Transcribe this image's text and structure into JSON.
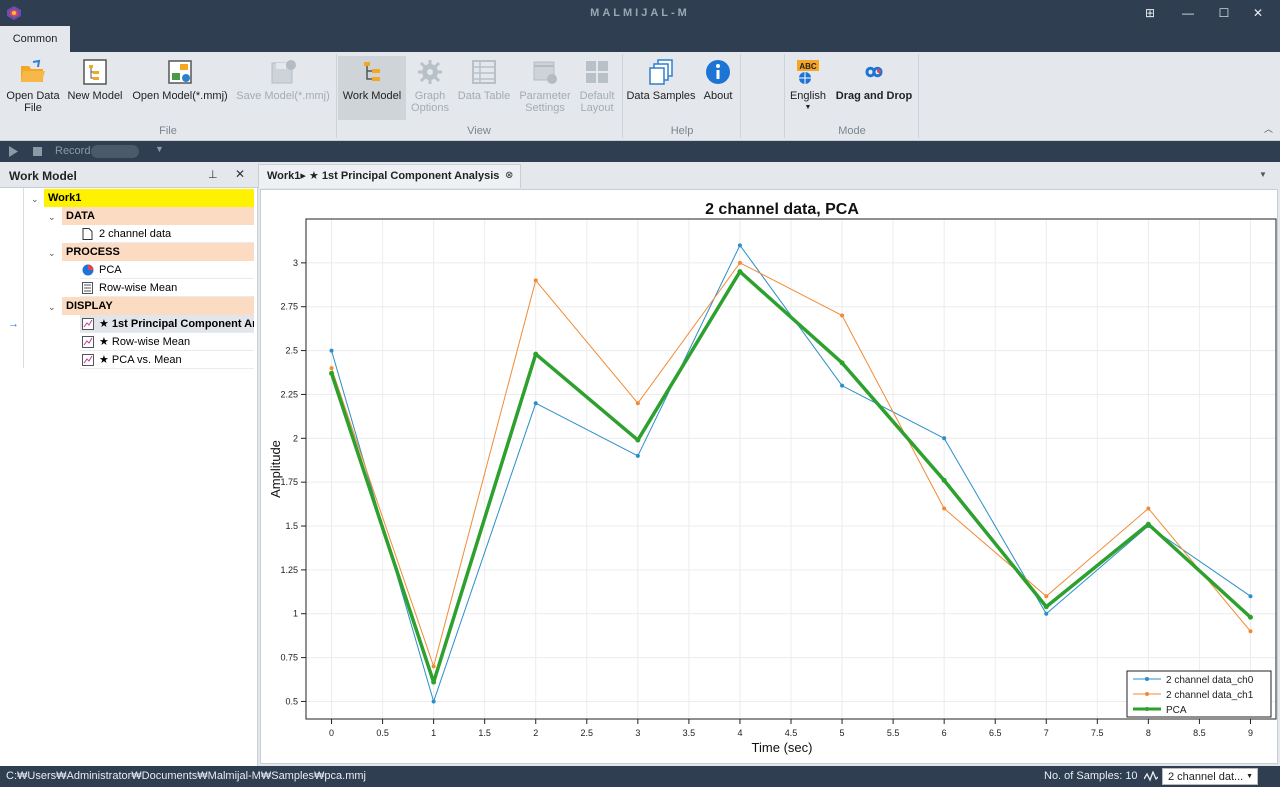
{
  "window": {
    "title": "MALMIJAL-M"
  },
  "tabs": [
    {
      "label": "Common"
    }
  ],
  "ribbon": {
    "buttons": [
      {
        "label": "Open Data",
        "label2": "File"
      },
      {
        "label": "New Model"
      },
      {
        "label": "Open Model(*.mmj)"
      },
      {
        "label": "Save Model(*.mmj)"
      },
      {
        "label": "Work Model"
      },
      {
        "label": "Graph",
        "label2": "Options"
      },
      {
        "label": "Data Table"
      },
      {
        "label": "Parameter",
        "label2": "Settings"
      },
      {
        "label": "Default",
        "label2": "Layout"
      },
      {
        "label": "Data Samples"
      },
      {
        "label": "About"
      },
      {
        "label": "English",
        "badge": "ABC"
      },
      {
        "label": "Drag and Drop"
      }
    ],
    "groups": [
      {
        "label": "File"
      },
      {
        "label": "View"
      },
      {
        "label": "Help"
      },
      {
        "label": "Mode"
      }
    ]
  },
  "record": {
    "label": "Record"
  },
  "work_model": {
    "title": "Work Model",
    "root": "Work1",
    "sections": [
      {
        "label": "DATA",
        "items": [
          {
            "label": "2 channel data"
          }
        ]
      },
      {
        "label": "PROCESS",
        "items": [
          {
            "label": "PCA"
          },
          {
            "label": "Row-wise Mean"
          }
        ]
      },
      {
        "label": "DISPLAY",
        "items": [
          {
            "label": "★ 1st Principal Component Analysis"
          },
          {
            "label": "★ Row-wise Mean"
          },
          {
            "label": "★ PCA vs. Mean"
          }
        ]
      }
    ]
  },
  "doc_tab": {
    "label": "Work1▸ ★ 1st Principal Component Analysis"
  },
  "chart_data": {
    "type": "line",
    "title": "2 channel data, PCA",
    "xlabel": "Time (sec)",
    "ylabel": "Amplitude",
    "xlim": [
      -0.25,
      9.25
    ],
    "ylim": [
      0.4,
      3.25
    ],
    "xticks": [
      "0",
      "0.5",
      "1",
      "1.5",
      "2",
      "2.5",
      "3",
      "3.5",
      "4",
      "4.5",
      "5",
      "5.5",
      "6",
      "6.5",
      "7",
      "7.5",
      "8",
      "8.5",
      "9"
    ],
    "yticks": [
      "0.5",
      "0.75",
      "1",
      "1.25",
      "1.5",
      "1.75",
      "2",
      "2.25",
      "2.5",
      "2.75",
      "3"
    ],
    "grid": true,
    "legend_position": "bottom-right",
    "x": [
      0,
      1,
      2,
      3,
      4,
      5,
      6,
      7,
      8,
      9
    ],
    "series": [
      {
        "name": "2 channel data_ch0",
        "color": "#2a8fc8",
        "values": [
          2.5,
          0.5,
          2.2,
          1.9,
          3.1,
          2.3,
          2.0,
          1.0,
          1.5,
          1.1
        ]
      },
      {
        "name": "2 channel data_ch1",
        "color": "#f28a34",
        "values": [
          2.4,
          0.7,
          2.9,
          2.2,
          3.0,
          2.7,
          1.6,
          1.1,
          1.6,
          0.9
        ]
      },
      {
        "name": "PCA",
        "color": "#2ea02e",
        "values": [
          2.37,
          0.61,
          2.48,
          1.99,
          2.95,
          2.43,
          1.76,
          1.04,
          1.51,
          0.98
        ]
      }
    ]
  },
  "status": {
    "path": "C:₩Users₩Administrator₩Documents₩Malmijal-M₩Samples₩pca.mmj",
    "samples": "No. of Samples: 10",
    "channel": "2 channel dat..."
  }
}
